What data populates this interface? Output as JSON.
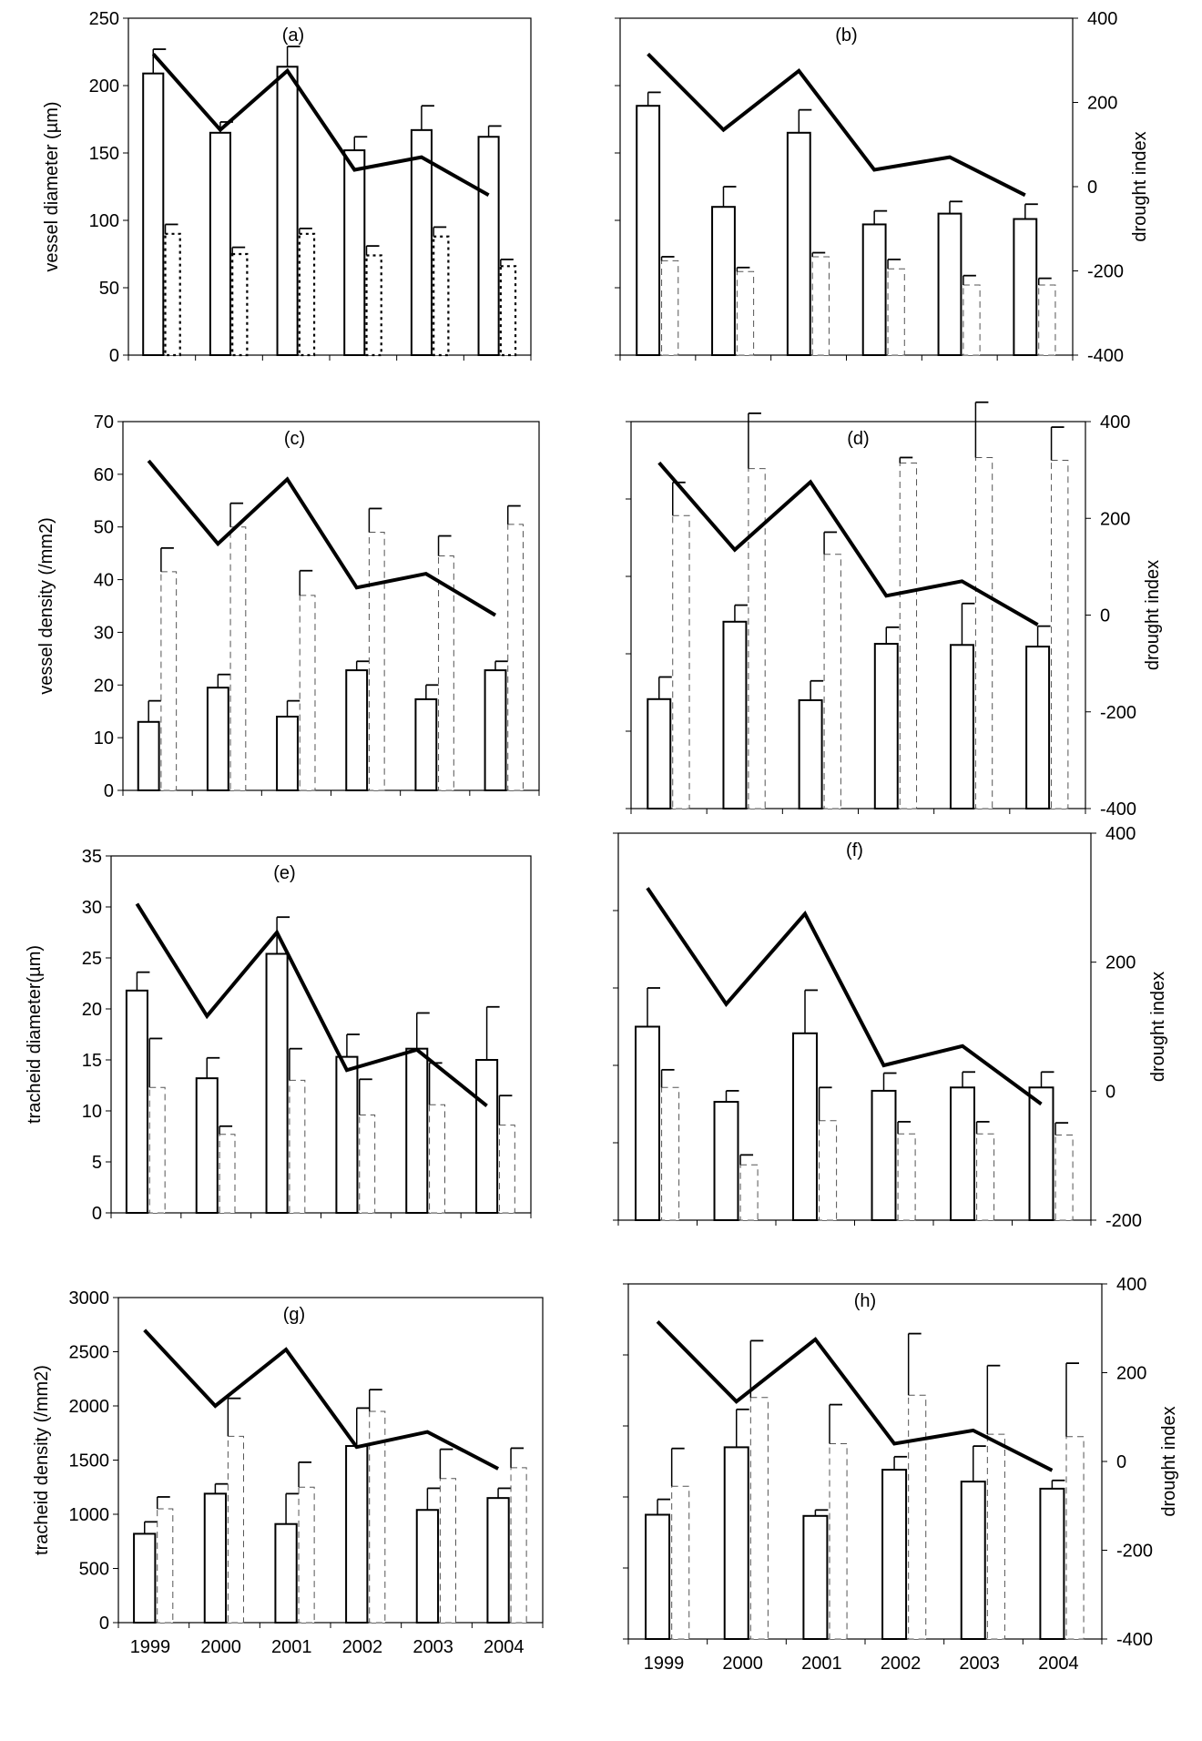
{
  "figure": {
    "x_categories": [
      "1999",
      "2000",
      "2001",
      "2002",
      "2003",
      "2004"
    ],
    "drought_index": [
      315,
      135,
      275,
      40,
      70,
      -20
    ]
  },
  "chart_data": [
    {
      "id": "a",
      "panel_label": "(a)",
      "type": "bar",
      "categories": [
        "1999",
        "2000",
        "2001",
        "2002",
        "2003",
        "2004"
      ],
      "ylabel": "vessel diameter (µm)",
      "ylim": [
        0,
        250
      ],
      "yticks": [
        "0",
        "50",
        "100",
        "150",
        "200",
        "250"
      ],
      "series": [
        {
          "style": "solid",
          "values": [
            209,
            165,
            214,
            152,
            167,
            162
          ],
          "errors": [
            18,
            8,
            15,
            10,
            18,
            8
          ]
        },
        {
          "style": "dotted",
          "values": [
            90,
            75,
            90,
            74,
            88,
            66
          ],
          "errors": [
            7,
            5,
            4,
            7,
            7,
            5
          ]
        }
      ],
      "line": {
        "axis": "right",
        "values": [
          315,
          135,
          275,
          40,
          70,
          -20
        ]
      },
      "y2label": "",
      "y2lim": [
        -400,
        400
      ],
      "y2ticks": [],
      "show_x_labels": false
    },
    {
      "id": "b",
      "panel_label": "(b)",
      "type": "bar",
      "categories": [
        "1999",
        "2000",
        "2001",
        "2002",
        "2003",
        "2004"
      ],
      "ylabel": "",
      "ylim": [
        0,
        250
      ],
      "yticks": [],
      "series": [
        {
          "style": "solid",
          "values": [
            185,
            110,
            165,
            97,
            105,
            101
          ],
          "errors": [
            10,
            15,
            17,
            10,
            9,
            11
          ]
        },
        {
          "style": "dashed",
          "values": [
            70,
            62,
            73,
            64,
            52,
            52
          ],
          "errors": [
            3,
            3,
            3,
            7,
            7,
            5
          ]
        }
      ],
      "line": {
        "axis": "right",
        "values": [
          315,
          135,
          275,
          40,
          70,
          -20
        ]
      },
      "y2label": "drought index",
      "y2lim": [
        -400,
        400
      ],
      "y2ticks": [
        "-400",
        "-200",
        "0",
        "200",
        "400"
      ],
      "show_x_labels": false
    },
    {
      "id": "c",
      "panel_label": "(c)",
      "type": "bar",
      "categories": [
        "1999",
        "2000",
        "2001",
        "2002",
        "2003",
        "2004"
      ],
      "ylabel": "vessel density (/mm2)",
      "ylim": [
        0,
        70
      ],
      "yticks": [
        "0",
        "10",
        "20",
        "30",
        "40",
        "50",
        "60",
        "70"
      ],
      "series": [
        {
          "style": "solid",
          "values": [
            13,
            19.5,
            14,
            22.8,
            17.3,
            22.8
          ],
          "errors": [
            4,
            2.5,
            3,
            1.7,
            2.7,
            1.7
          ]
        },
        {
          "style": "dashed",
          "values": [
            41.5,
            50,
            37,
            49,
            44.5,
            50.5
          ],
          "errors": [
            4.5,
            4.5,
            4.7,
            4.5,
            3.8,
            3.5
          ]
        }
      ],
      "line": {
        "axis": "right",
        "values": [
          315,
          135,
          275,
          40,
          70,
          -20
        ]
      },
      "y2label": "",
      "y2lim": [
        -400,
        400
      ],
      "y2ticks": [],
      "show_x_labels": false
    },
    {
      "id": "d",
      "panel_label": "(d)",
      "type": "bar",
      "categories": [
        "1999",
        "2000",
        "2001",
        "2002",
        "2003",
        "2004"
      ],
      "ylabel": "",
      "ylim": [
        0,
        70
      ],
      "yticks": [],
      "series": [
        {
          "style": "solid",
          "values": [
            19.8,
            33.8,
            19.6,
            29.8,
            29.6,
            29.3
          ],
          "errors": [
            4,
            3,
            3.5,
            3,
            7.5,
            3.7
          ]
        },
        {
          "style": "dashed",
          "values": [
            53,
            61.5,
            46,
            62.5,
            63.5,
            63
          ],
          "errors": [
            6,
            10,
            4,
            1,
            10,
            6
          ]
        }
      ],
      "line": {
        "axis": "right",
        "values": [
          315,
          135,
          275,
          40,
          70,
          -20
        ]
      },
      "y2label": "drought index",
      "y2lim": [
        -400,
        400
      ],
      "y2ticks": [
        "-400",
        "-200",
        "0",
        "200",
        "400"
      ],
      "show_x_labels": false
    },
    {
      "id": "e",
      "panel_label": "(e)",
      "type": "bar",
      "categories": [
        "1999",
        "2000",
        "2001",
        "2002",
        "2003",
        "2004"
      ],
      "ylabel": "tracheid diameter(µm)",
      "ylim": [
        0,
        35
      ],
      "yticks": [
        "0",
        "5",
        "10",
        "15",
        "20",
        "25",
        "30",
        "35"
      ],
      "series": [
        {
          "style": "solid",
          "values": [
            21.8,
            13.2,
            25.4,
            15.3,
            16.1,
            15.0
          ],
          "errors": [
            1.8,
            2.0,
            3.6,
            2.2,
            3.5,
            5.2
          ]
        },
        {
          "style": "dashed",
          "values": [
            12.3,
            7.7,
            13.0,
            9.6,
            10.6,
            8.6
          ],
          "errors": [
            4.8,
            0.8,
            3.1,
            3.5,
            4.1,
            2.9
          ]
        }
      ],
      "line": {
        "axis": "left",
        "values": [
          30.3,
          19.3,
          27.5,
          14.0,
          16.0,
          10.5
        ]
      },
      "y2label": "",
      "y2lim": [
        -200,
        400
      ],
      "y2ticks": [],
      "show_x_labels": false
    },
    {
      "id": "f",
      "panel_label": "(f)",
      "type": "bar",
      "categories": [
        "1999",
        "2000",
        "2001",
        "2002",
        "2003",
        "2004"
      ],
      "ylabel": "",
      "ylim": [
        0,
        35
      ],
      "yticks": [],
      "series": [
        {
          "style": "solid",
          "values": [
            17.5,
            10.7,
            16.9,
            11.7,
            12.0,
            12.0
          ],
          "errors": [
            3.5,
            1.0,
            3.9,
            1.6,
            1.4,
            1.4
          ]
        },
        {
          "style": "dashed",
          "values": [
            12.0,
            5.0,
            9.0,
            7.8,
            7.8,
            7.7
          ],
          "errors": [
            1.6,
            0.9,
            3.0,
            1.1,
            1.1,
            1.1
          ]
        }
      ],
      "line": {
        "axis": "right",
        "values": [
          315,
          135,
          275,
          40,
          70,
          -20
        ]
      },
      "y2label": "drought index",
      "y2lim": [
        -200,
        400
      ],
      "y2ticks": [
        "-200",
        "0",
        "200",
        "400"
      ],
      "show_x_labels": false
    },
    {
      "id": "g",
      "panel_label": "(g)",
      "type": "bar",
      "categories": [
        "1999",
        "2000",
        "2001",
        "2002",
        "2003",
        "2004"
      ],
      "ylabel": "tracheid density (/mm2)",
      "ylim": [
        0,
        3000
      ],
      "yticks": [
        "0",
        "500",
        "1000",
        "1500",
        "2000",
        "2500",
        "3000"
      ],
      "series": [
        {
          "style": "solid",
          "values": [
            820,
            1190,
            910,
            1630,
            1040,
            1150
          ],
          "errors": [
            110,
            90,
            280,
            350,
            200,
            90
          ]
        },
        {
          "style": "dashed",
          "values": [
            1050,
            1720,
            1250,
            1950,
            1330,
            1430
          ],
          "errors": [
            110,
            350,
            230,
            200,
            270,
            180
          ]
        }
      ],
      "line": {
        "axis": "left",
        "values": [
          2700,
          2000,
          2520,
          1620,
          1760,
          1420
        ]
      },
      "y2label": "",
      "y2lim": [
        -400,
        400
      ],
      "y2ticks": [],
      "show_x_labels": true
    },
    {
      "id": "h",
      "panel_label": "(h)",
      "type": "bar",
      "categories": [
        "1999",
        "2000",
        "2001",
        "2002",
        "2003",
        "2004"
      ],
      "ylabel": "",
      "ylim": [
        0,
        3000
      ],
      "yticks": [],
      "series": [
        {
          "style": "solid",
          "values": [
            1050,
            1620,
            1040,
            1430,
            1330,
            1270
          ],
          "errors": [
            130,
            320,
            50,
            110,
            300,
            70
          ]
        },
        {
          "style": "dashed",
          "values": [
            1290,
            2040,
            1650,
            2060,
            1730,
            1710
          ],
          "errors": [
            320,
            480,
            330,
            520,
            580,
            620
          ]
        }
      ],
      "line": {
        "axis": "right",
        "values": [
          315,
          135,
          275,
          40,
          70,
          -20
        ]
      },
      "y2label": "drought index",
      "y2lim": [
        -400,
        400
      ],
      "y2ticks": [
        "-400",
        "-200",
        "0",
        "200",
        "400"
      ],
      "show_x_labels": true
    }
  ]
}
